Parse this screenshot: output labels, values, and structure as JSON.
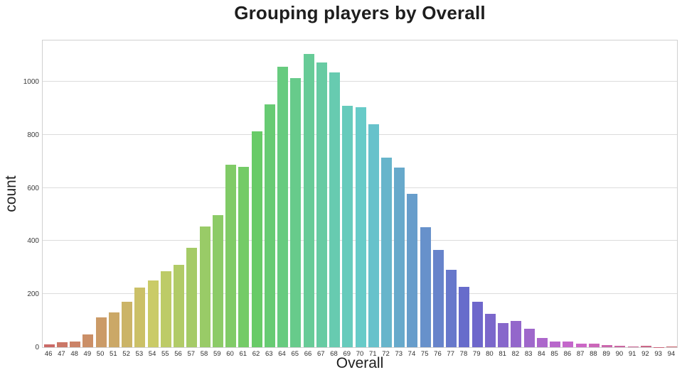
{
  "chart_data": {
    "type": "bar",
    "title": "Grouping players by Overall",
    "xlabel": "Overall",
    "ylabel": "count",
    "categories": [
      "46",
      "47",
      "48",
      "49",
      "50",
      "51",
      "52",
      "53",
      "54",
      "55",
      "56",
      "57",
      "58",
      "59",
      "60",
      "61",
      "62",
      "63",
      "64",
      "65",
      "66",
      "67",
      "68",
      "69",
      "70",
      "71",
      "72",
      "73",
      "74",
      "75",
      "76",
      "77",
      "78",
      "79",
      "80",
      "81",
      "82",
      "83",
      "84",
      "85",
      "86",
      "87",
      "88",
      "89",
      "90",
      "91",
      "92",
      "93",
      "94"
    ],
    "values": [
      10,
      18,
      22,
      47,
      113,
      130,
      172,
      225,
      252,
      287,
      310,
      375,
      455,
      497,
      688,
      680,
      812,
      915,
      1058,
      1014,
      1106,
      1073,
      1034,
      910,
      905,
      840,
      715,
      676,
      578,
      452,
      367,
      292,
      228,
      172,
      125,
      92,
      100,
      70,
      35,
      21,
      22,
      13,
      14,
      8,
      6,
      2,
      5,
      1,
      2
    ],
    "yticks": [
      0,
      200,
      400,
      600,
      800,
      1000
    ],
    "ylim": [
      0,
      1161
    ],
    "grid": "horizontal",
    "legend": "none",
    "palette": {
      "model": "hsl-rainbow",
      "hue_start_deg": 2,
      "hue_step_deg": 7.347,
      "saturation_pct": 49,
      "lightness_pct": 60
    },
    "colors": {
      "background": "#ffffff",
      "grid": "#dcdcdc",
      "spine": "#d0d0d0",
      "text": "#1e1e1e",
      "tick_text": "#333333",
      "first_bar_sample": "#c8655c",
      "peak_bar_sample": "#63ca96",
      "last_bar_sample": "#cb679b"
    }
  }
}
